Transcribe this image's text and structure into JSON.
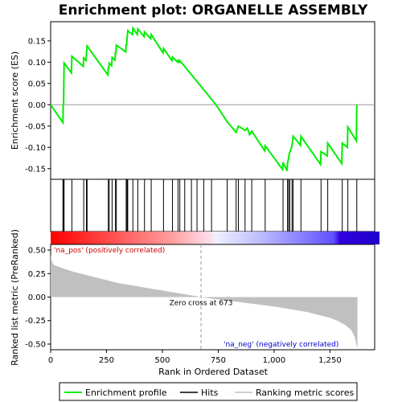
{
  "chart_data": {
    "type": "line",
    "title": "Enrichment plot: ORGANELLE ASSEMBLY",
    "xlabel": "Rank in Ordered Dataset",
    "ylabel_top": "Enrichment score (ES)",
    "ylabel_bottom": "Ranked list metric (PreRanked)",
    "x_range": [
      0,
      1450
    ],
    "es_ylim": [
      -0.175,
      0.195
    ],
    "metric_ylim": [
      -0.56,
      0.56
    ],
    "es_yticks": [
      "0.15",
      "0.10",
      "0.05",
      "0.00",
      "-0.05",
      "-0.10",
      "-0.15"
    ],
    "metric_yticks": [
      "0.50",
      "0.25",
      "0.00",
      "-0.25",
      "-0.50"
    ],
    "xticks": [
      "0",
      "250",
      "500",
      "750",
      "1,000",
      "1,250"
    ],
    "zero_cross_label": "Zero cross at 673",
    "zero_cross": 673,
    "pos_label": "'na_pos' (positively correlated)",
    "neg_label": "'na_neg' (negatively correlated)",
    "n_genes": 1373,
    "hits": [
      55,
      58,
      60,
      95,
      148,
      160,
      163,
      258,
      262,
      275,
      290,
      294,
      338,
      342,
      345,
      368,
      390,
      420,
      450,
      505,
      545,
      570,
      578,
      600,
      630,
      655,
      685,
      720,
      790,
      830,
      840,
      870,
      900,
      960,
      1040,
      1060,
      1065,
      1070,
      1080,
      1085,
      1120,
      1210,
      1240,
      1305,
      1330,
      1370
    ],
    "es_series": [
      [
        0,
        0.0
      ],
      [
        55,
        -0.042
      ],
      [
        56,
        0.0
      ],
      [
        58,
        0.003
      ],
      [
        60,
        0.098
      ],
      [
        93,
        0.075
      ],
      [
        95,
        0.114
      ],
      [
        146,
        0.09
      ],
      [
        148,
        0.11
      ],
      [
        158,
        0.104
      ],
      [
        160,
        0.118
      ],
      [
        163,
        0.138
      ],
      [
        256,
        0.07
      ],
      [
        258,
        0.089
      ],
      [
        260,
        0.085
      ],
      [
        262,
        0.098
      ],
      [
        273,
        0.092
      ],
      [
        275,
        0.111
      ],
      [
        288,
        0.105
      ],
      [
        290,
        0.124
      ],
      [
        292,
        0.119
      ],
      [
        294,
        0.14
      ],
      [
        336,
        0.124
      ],
      [
        338,
        0.143
      ],
      [
        340,
        0.139
      ],
      [
        342,
        0.158
      ],
      [
        343,
        0.16
      ],
      [
        345,
        0.174
      ],
      [
        366,
        0.165
      ],
      [
        368,
        0.18
      ],
      [
        388,
        0.165
      ],
      [
        390,
        0.178
      ],
      [
        418,
        0.16
      ],
      [
        420,
        0.171
      ],
      [
        448,
        0.155
      ],
      [
        450,
        0.165
      ],
      [
        503,
        0.122
      ],
      [
        505,
        0.132
      ],
      [
        543,
        0.104
      ],
      [
        545,
        0.112
      ],
      [
        568,
        0.1
      ],
      [
        570,
        0.104
      ],
      [
        576,
        0.1
      ],
      [
        578,
        0.104
      ],
      [
        740,
        0.0
      ],
      [
        790,
        -0.04
      ],
      [
        830,
        -0.065
      ],
      [
        840,
        -0.05
      ],
      [
        870,
        -0.06
      ],
      [
        880,
        -0.055
      ],
      [
        890,
        -0.07
      ],
      [
        900,
        -0.062
      ],
      [
        958,
        -0.108
      ],
      [
        960,
        -0.096
      ],
      [
        1038,
        -0.152
      ],
      [
        1040,
        -0.135
      ],
      [
        1058,
        -0.155
      ],
      [
        1060,
        -0.138
      ],
      [
        1063,
        -0.13
      ],
      [
        1065,
        -0.125
      ],
      [
        1068,
        -0.115
      ],
      [
        1070,
        -0.112
      ],
      [
        1078,
        -0.1
      ],
      [
        1080,
        -0.095
      ],
      [
        1083,
        -0.085
      ],
      [
        1085,
        -0.074
      ],
      [
        1118,
        -0.095
      ],
      [
        1120,
        -0.074
      ],
      [
        1208,
        -0.14
      ],
      [
        1210,
        -0.11
      ],
      [
        1238,
        -0.12
      ],
      [
        1240,
        -0.09
      ],
      [
        1303,
        -0.138
      ],
      [
        1305,
        -0.09
      ],
      [
        1328,
        -0.1
      ],
      [
        1330,
        -0.052
      ],
      [
        1368,
        -0.085
      ],
      [
        1370,
        0.0
      ]
    ],
    "metric_series": [
      [
        0,
        0.45
      ],
      [
        5,
        0.38
      ],
      [
        15,
        0.34
      ],
      [
        50,
        0.31
      ],
      [
        100,
        0.27
      ],
      [
        150,
        0.24
      ],
      [
        200,
        0.21
      ],
      [
        250,
        0.18
      ],
      [
        300,
        0.15
      ],
      [
        350,
        0.13
      ],
      [
        400,
        0.11
      ],
      [
        450,
        0.09
      ],
      [
        500,
        0.07
      ],
      [
        550,
        0.05
      ],
      [
        600,
        0.03
      ],
      [
        650,
        0.01
      ],
      [
        673,
        0.0
      ],
      [
        700,
        -0.01
      ],
      [
        750,
        -0.025
      ],
      [
        800,
        -0.04
      ],
      [
        850,
        -0.055
      ],
      [
        900,
        -0.07
      ],
      [
        950,
        -0.085
      ],
      [
        1000,
        -0.1
      ],
      [
        1050,
        -0.12
      ],
      [
        1100,
        -0.14
      ],
      [
        1150,
        -0.16
      ],
      [
        1200,
        -0.19
      ],
      [
        1250,
        -0.22
      ],
      [
        1290,
        -0.26
      ],
      [
        1320,
        -0.3
      ],
      [
        1345,
        -0.35
      ],
      [
        1360,
        -0.42
      ],
      [
        1368,
        -0.5
      ],
      [
        1373,
        -0.55
      ]
    ],
    "colors": {
      "es_line": "#00ee00",
      "hit_line": "#000000",
      "metric_fill": "#c0c0c0",
      "pos_text": "#cc0000",
      "neg_text": "#0000cc",
      "zero_line": "#999999"
    },
    "legend": {
      "placement": "bottom",
      "items": [
        {
          "label": "Enrichment profile",
          "style": "green-line"
        },
        {
          "label": "Hits",
          "style": "black-line"
        },
        {
          "label": "Ranking metric scores",
          "style": "gray-line"
        }
      ]
    }
  }
}
